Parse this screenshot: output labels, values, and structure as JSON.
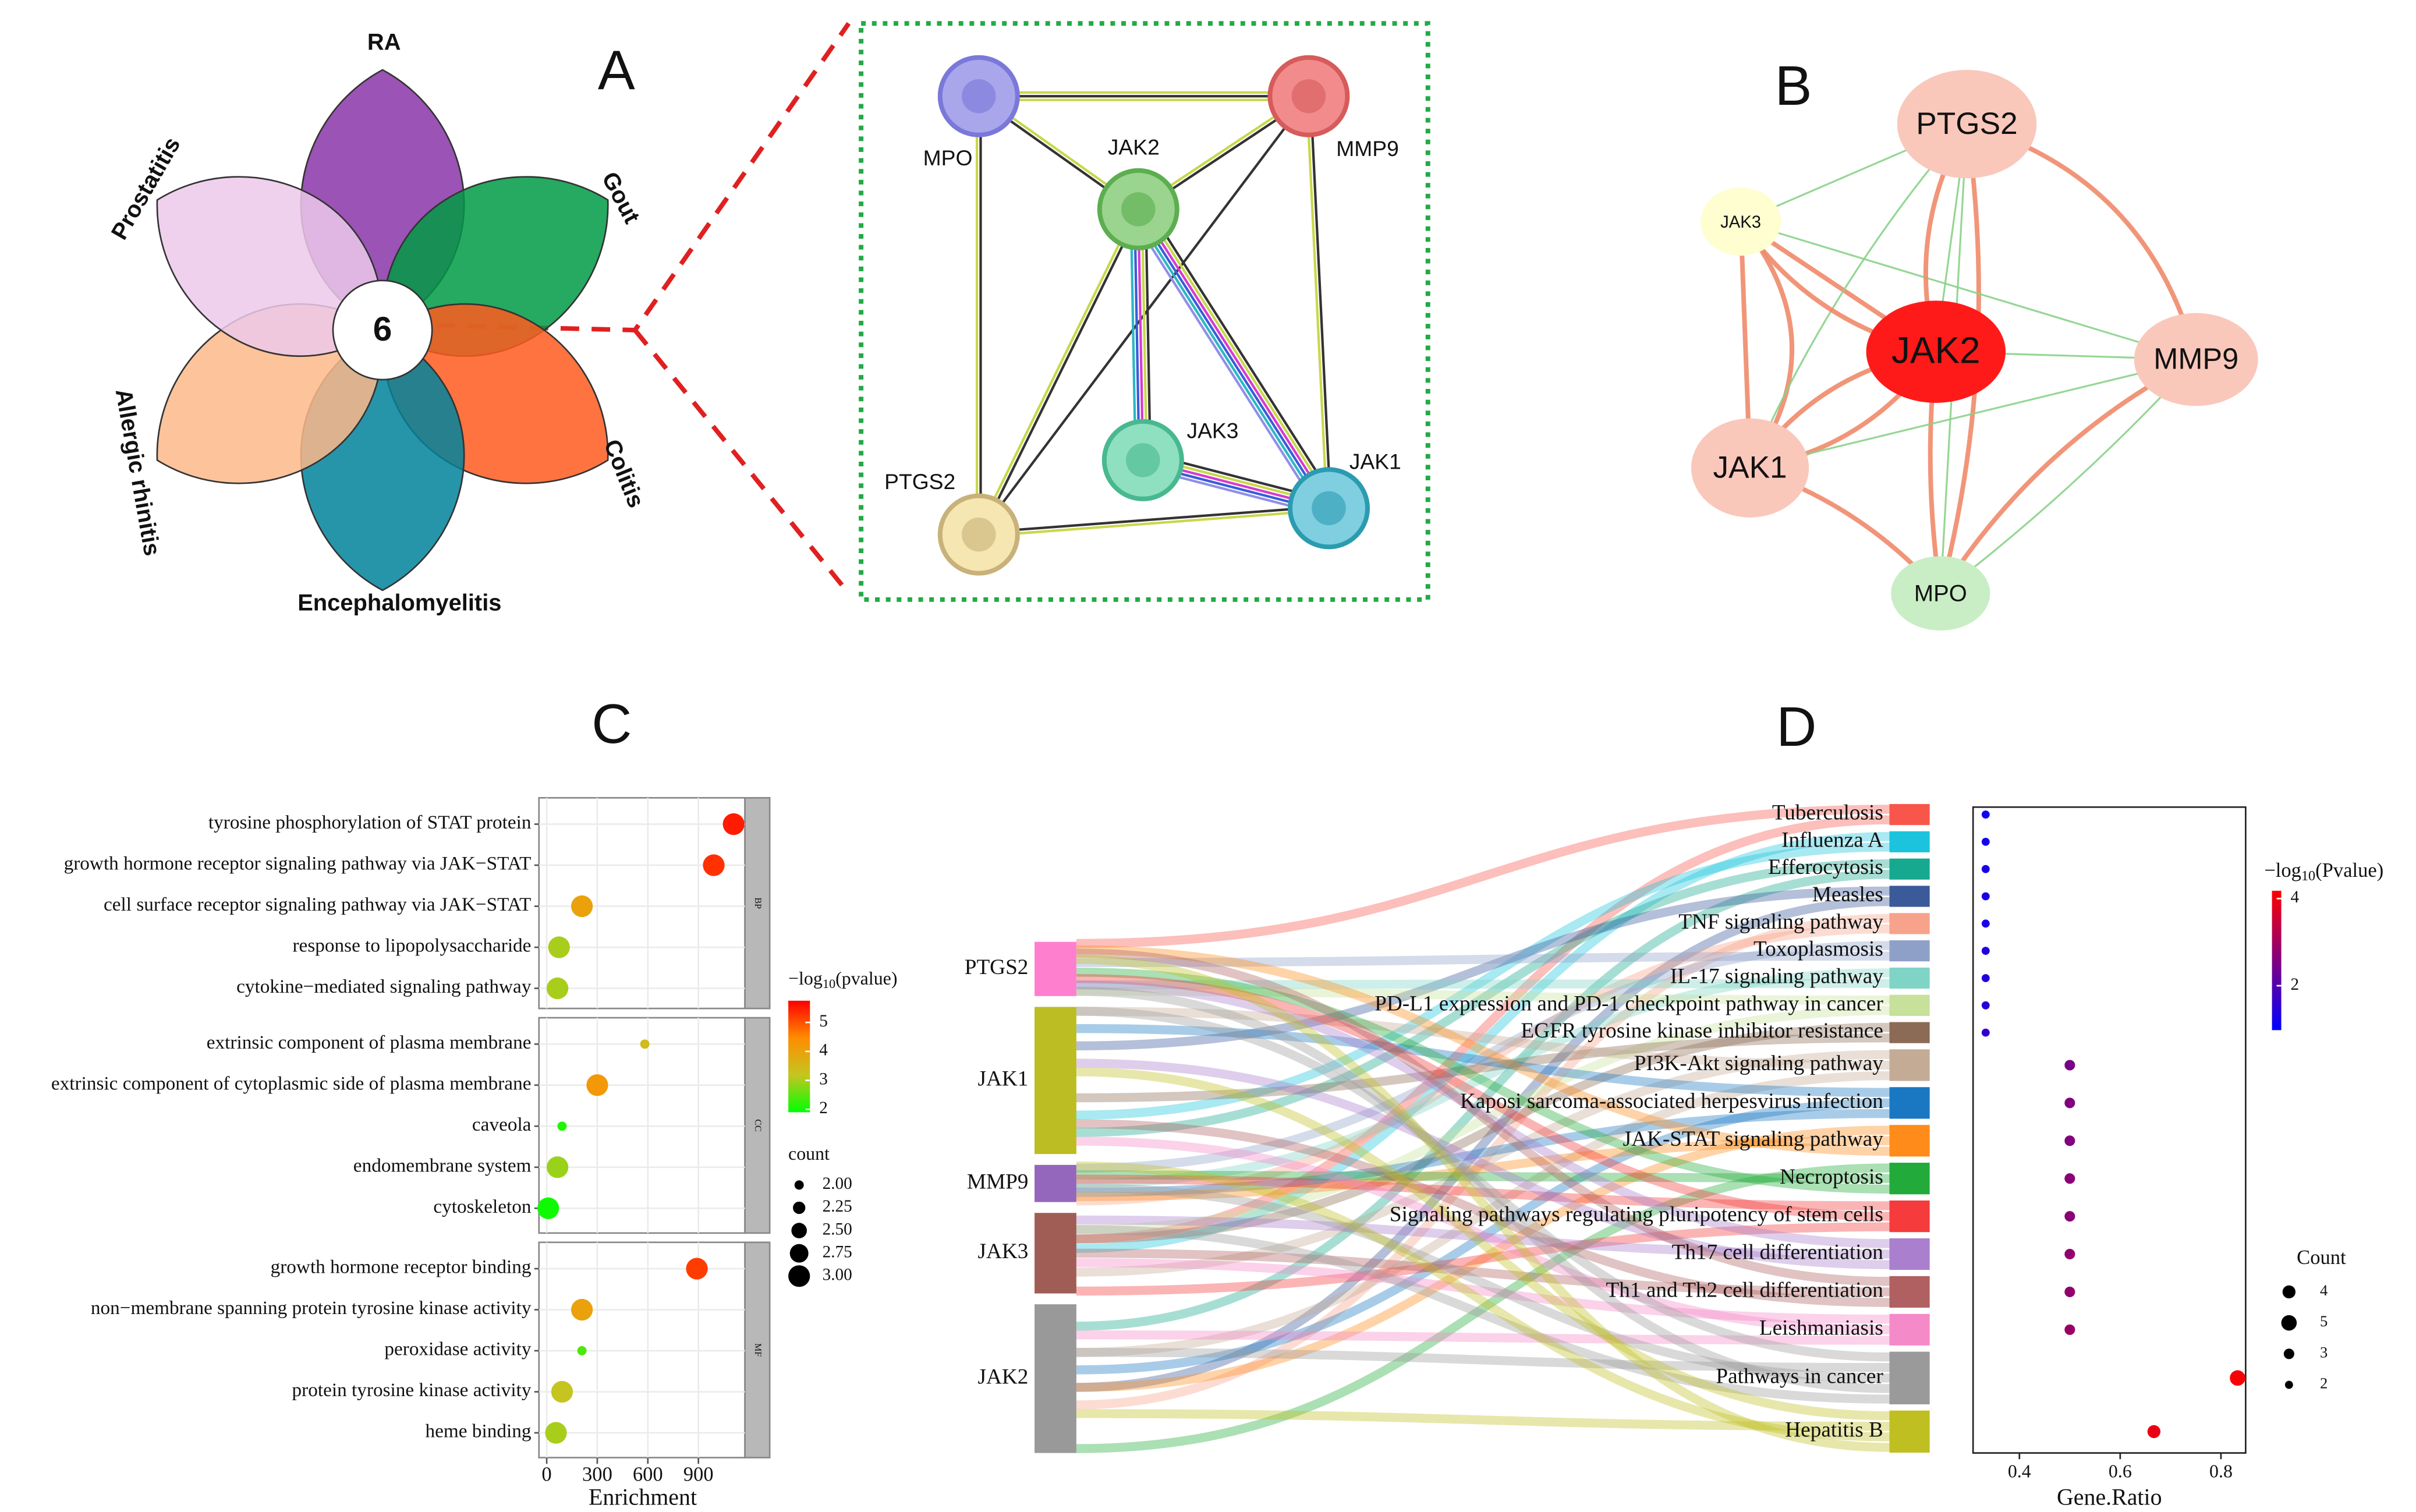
{
  "panel_labels": [
    "A",
    "B",
    "C",
    "D"
  ],
  "venn": {
    "center": "6",
    "sets": [
      {
        "name": "RA",
        "color": "#8a35a8"
      },
      {
        "name": "Gout",
        "color": "#009a44"
      },
      {
        "name": "Colitis",
        "color": "#ff5a1f"
      },
      {
        "name": "Encephalomyelitis",
        "color": "#00839b"
      },
      {
        "name": "Allergic rhinitis",
        "color": "#fdb98a"
      },
      {
        "name": "Prostatitis",
        "color": "#ecc9ea"
      }
    ]
  },
  "ppi_network": {
    "nodes": [
      "MPO",
      "JAK2",
      "MMP9",
      "PTGS2",
      "JAK3",
      "JAK1"
    ]
  },
  "gene_network": {
    "nodes": [
      "PTGS2",
      "JAK3",
      "JAK2",
      "MMP9",
      "JAK1",
      "MPO"
    ]
  },
  "go_enrichment": {
    "type": "scatter",
    "groups": [
      {
        "name": "BP",
        "terms": [
          "tyrosine phosphorylation of STAT protein",
          "growth hormone receptor signaling pathway via JAK−STAT",
          "cell surface receptor signaling pathway via JAK−STAT",
          "response to lipopolysaccharide",
          "cytokine−mediated signaling pathway"
        ],
        "enrichment": [
          1109,
          991,
          209,
          73,
          64
        ],
        "count": [
          3,
          3,
          3,
          3,
          3
        ],
        "log10_pvalue": [
          5.5,
          5.3,
          4.0,
          3.0,
          3.0
        ]
      },
      {
        "name": "CC",
        "terms": [
          "extrinsic component of plasma membrane",
          "extrinsic component of cytoplasmic side of plasma membrane",
          "caveola",
          "endomembrane system",
          "cytoskeleton"
        ],
        "enrichment": [
          582,
          300,
          91,
          64,
          9
        ],
        "count": [
          2,
          3,
          2,
          3,
          3
        ],
        "log10_pvalue": [
          3.4,
          4.2,
          2.1,
          2.9,
          2.0
        ]
      },
      {
        "name": "MF",
        "terms": [
          "growth hormone receptor binding",
          "non−membrane spanning protein tyrosine kinase activity",
          "peroxidase activity",
          "protein tyrosine kinase activity",
          "heme binding"
        ],
        "enrichment": [
          891,
          209,
          209,
          91,
          55
        ],
        "count": [
          3,
          3,
          2,
          3,
          3
        ],
        "log10_pvalue": [
          5.2,
          4.0,
          2.4,
          3.2,
          3.0
        ]
      }
    ],
    "x_label": "Enrichment",
    "xlim": [
      -46,
      1176
    ],
    "xticks": [
      0,
      300,
      600,
      900
    ],
    "color_title": [
      "−log",
      "10",
      "(pvalue)"
    ],
    "color_lim": [
      1.9,
      5.75
    ],
    "color_ticks": [
      2,
      3,
      4,
      5
    ],
    "color_scale": [
      "#00ff00",
      "#c5c520",
      "#ff8c00",
      "#ff0000"
    ],
    "size_title": "count",
    "size_ticks": [
      {
        "value": 2,
        "label": "2.00"
      },
      {
        "value": 2.25,
        "label": "2.25"
      },
      {
        "value": 2.5,
        "label": "2.50"
      },
      {
        "value": 2.75,
        "label": "2.75"
      },
      {
        "value": 3,
        "label": "3.00"
      }
    ]
  },
  "kegg_enrichment": {
    "type": "scatter",
    "genes": [
      "PTGS2",
      "JAK1",
      "MMP9",
      "JAK3",
      "JAK2"
    ],
    "gene_colors": [
      "#ff7fcf",
      "#bcbd22",
      "#9467bd",
      "#a05d56",
      "#999999"
    ],
    "pathways": [
      "Tuberculosis",
      "Influenza A",
      "Efferocytosis",
      "Measles",
      "TNF signaling pathway",
      "Toxoplasmosis",
      "IL-17 signaling pathway",
      "PD-L1 expression and PD-1 checkpoint pathway in cancer",
      "EGFR tyrosine kinase inhibitor resistance",
      "PI3K-Akt signaling pathway",
      "Kaposi sarcoma-associated herpesvirus infection",
      "JAK-STAT signaling pathway",
      "Necroptosis",
      "Signaling pathways regulating pluripotency of stem cells",
      "Th17 cell differentiation",
      "Th1 and Th2 cell differentiation",
      "Leishmaniasis",
      "Pathways in cancer",
      "Hepatitis B"
    ],
    "pathway_colors": [
      "#f8564b",
      "#1bc4dc",
      "#17a98f",
      "#3b5a9a",
      "#f7a28a",
      "#8fa0c8",
      "#7fd4c5",
      "#c7e19a",
      "#8b6b55",
      "#c4ab95",
      "#1a78c2",
      "#ff8c1a",
      "#22aa3a",
      "#f53b3b",
      "#a97fce",
      "#b06060",
      "#f58ac8",
      "#9a9a9a",
      "#bfbf22"
    ],
    "gene_ratio": [
      0.333,
      0.333,
      0.333,
      0.333,
      0.333,
      0.333,
      0.333,
      0.333,
      0.333,
      0.5,
      0.5,
      0.5,
      0.5,
      0.5,
      0.5,
      0.5,
      0.5,
      0.833,
      0.667
    ],
    "count": [
      2,
      2,
      2,
      2,
      2,
      2,
      2,
      2,
      2,
      3,
      3,
      3,
      3,
      3,
      3,
      3,
      3,
      5,
      4
    ],
    "log10_pvalue": [
      1.2,
      1.2,
      1.3,
      1.3,
      1.3,
      1.4,
      1.4,
      1.5,
      1.6,
      2.5,
      2.6,
      2.6,
      2.7,
      2.7,
      2.8,
      2.8,
      2.9,
      4.1,
      3.9
    ],
    "x_label": "Gene.Ratio",
    "xlim": [
      0.308,
      0.849
    ],
    "xticks": [
      0.4,
      0.6,
      0.8
    ],
    "color_title": [
      "−log",
      "10",
      "(Pvalue)"
    ],
    "color_lim": [
      0.98,
      4.18
    ],
    "color_ticks": [
      2,
      4
    ],
    "color_scale": [
      "#0000ff",
      "#ff0000"
    ],
    "size_title": "Count",
    "size_ticks": [
      4,
      5,
      3,
      2
    ]
  }
}
